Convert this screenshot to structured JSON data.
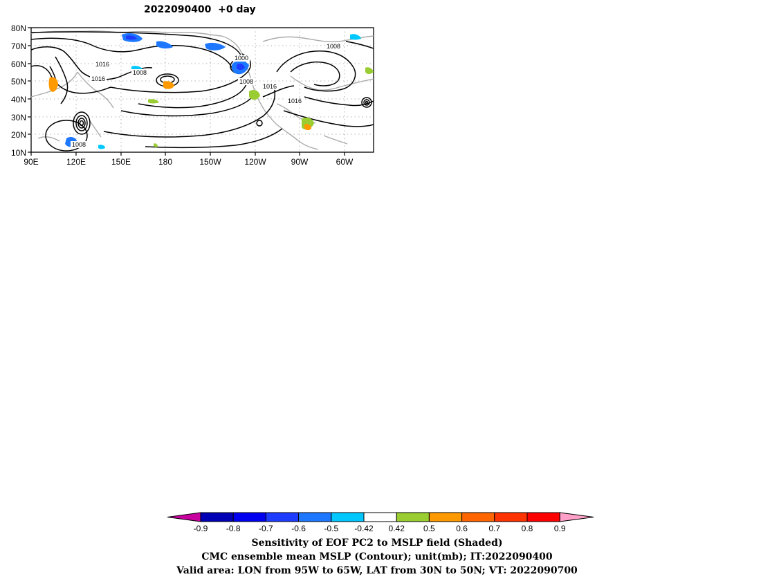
{
  "title": "2022090400  +0 day",
  "map": {
    "lat_labels": [
      "80N",
      "70N",
      "60N",
      "50N",
      "40N",
      "30N",
      "20N",
      "10N"
    ],
    "lon_labels": [
      "90E",
      "120E",
      "150E",
      "180",
      "150W",
      "120W",
      "90W",
      "60W"
    ],
    "contour_color": "#000000",
    "terrain_outline_color": "#aaaaaa",
    "contour_labels": [
      {
        "text": "1016"
      },
      {
        "text": "1016"
      },
      {
        "text": "1008"
      },
      {
        "text": "1000"
      },
      {
        "text": "1008"
      },
      {
        "text": "1016"
      },
      {
        "text": "1008"
      },
      {
        "text": "1016"
      },
      {
        "text": "1008"
      }
    ]
  },
  "colorbar": {
    "below_color": "#c800a0",
    "above_color": "#ffa0c8",
    "colors": [
      "#0000b4",
      "#0000f0",
      "#1e3cff",
      "#1e78ff",
      "#00c8ff",
      "#ffffff",
      "#9acd32",
      "#ff9900",
      "#ff6600",
      "#ff3300",
      "#ff0000"
    ],
    "tick_labels": [
      "-0.9",
      "-0.8",
      "-0.7",
      "-0.6",
      "-0.5",
      "-0.42",
      "0.42",
      "0.5",
      "0.6",
      "0.7",
      "0.8",
      "0.9"
    ]
  },
  "captions": [
    "Sensitivity of EOF PC2 to MSLP field (Shaded)",
    "CMC ensemble mean MSLP (Contour); unit(mb); IT:2022090400",
    "Valid area: LON from 95W to 65W, LAT from 30N to 50N; VT: 2022090700"
  ]
}
